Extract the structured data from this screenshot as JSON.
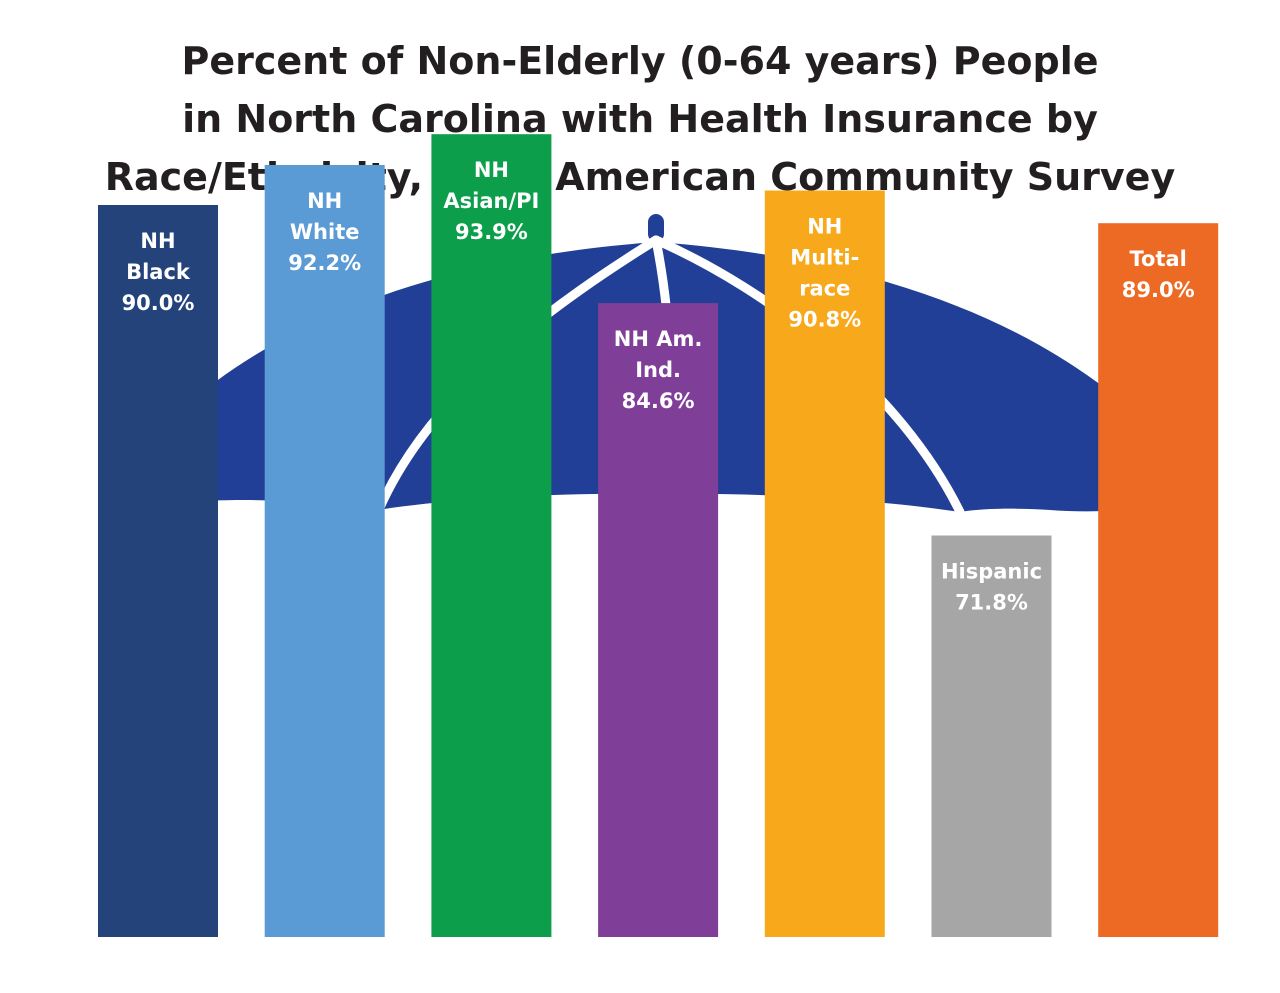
{
  "title_lines": [
    "Percent of Non-Elderly (0-64 years) People",
    "in North Carolina with Health Insurance by",
    "Race/Ethnicity, 2023 American Community Survey"
  ],
  "umbrella_color": "#213f97",
  "chart_data": {
    "type": "bar",
    "title": "Percent of Non-Elderly (0-64 years) People in North Carolina with Health Insurance by Race/Ethnicity, 2023 American Community Survey",
    "categories": [
      "NH Black",
      "NH White",
      "NH Asian/PI",
      "NH Am. Ind.",
      "NH Multi-race",
      "Hispanic",
      "Total"
    ],
    "label_lines": [
      [
        "NH",
        "Black",
        "90.0%"
      ],
      [
        "NH",
        "White",
        "92.2%"
      ],
      [
        "NH",
        "Asian/PI",
        "93.9%"
      ],
      [
        "NH Am.",
        "Ind.",
        "84.6%"
      ],
      [
        "NH",
        "Multi-",
        "race",
        "90.8%"
      ],
      [
        "Hispanic",
        "71.8%"
      ],
      [
        "Total",
        "89.0%"
      ]
    ],
    "values": [
      90.0,
      92.2,
      93.9,
      84.6,
      90.8,
      71.8,
      89.0
    ],
    "colors": [
      "#24437a",
      "#5b9bd5",
      "#0c9e4a",
      "#7f3f98",
      "#f7a81b",
      "#a6a6a6",
      "#ec6a23"
    ],
    "unit": "%",
    "xlabel": "",
    "ylabel": "",
    "grid": false,
    "legend": "none"
  }
}
